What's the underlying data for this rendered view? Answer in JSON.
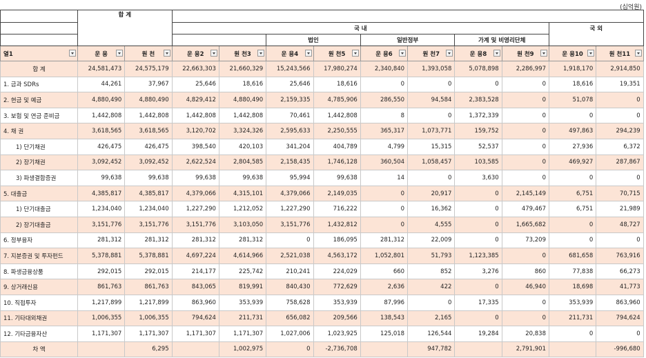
{
  "unit": "(십억원)",
  "header": {
    "total": "합 계",
    "domestic": "국 내",
    "foreign": "국 외",
    "groups": [
      "법인",
      "일반정부",
      "가계 및 비영리단체"
    ],
    "columns": [
      "열1",
      "운 용",
      "원 천",
      "운 용2",
      "원 천3",
      "운 용4",
      "원 천5",
      "운 용6",
      "원 천7",
      "운 용8",
      "원 천9",
      "운 용10",
      "원 천11"
    ]
  },
  "rows": [
    {
      "label": "합 계",
      "cells": [
        "24,581,473",
        "24,575,179",
        "22,663,303",
        "21,660,329",
        "15,243,566",
        "17,980,274",
        "2,340,840",
        "1,393,058",
        "5,078,898",
        "2,286,997",
        "1,918,170",
        "2,914,850"
      ]
    },
    {
      "label": "1. 금과 SDRs",
      "cells": [
        "44,261",
        "37,967",
        "25,646",
        "18,616",
        "25,646",
        "18,616",
        "0",
        "0",
        "0",
        "0",
        "18,616",
        "19,351"
      ]
    },
    {
      "label": "2. 현금 및 예금",
      "cells": [
        "4,880,490",
        "4,880,490",
        "4,829,412",
        "4,880,490",
        "2,159,335",
        "4,785,906",
        "286,550",
        "94,584",
        "2,383,528",
        "0",
        "51,078",
        "0"
      ]
    },
    {
      "label": "3. 보험 및 연금 준비금",
      "cells": [
        "1,442,808",
        "1,442,808",
        "1,442,808",
        "1,442,808",
        "70,461",
        "1,442,808",
        "8",
        "0",
        "1,372,339",
        "0",
        "0",
        "0"
      ]
    },
    {
      "label": "4. 채   권",
      "cells": [
        "3,618,565",
        "3,618,565",
        "3,120,702",
        "3,324,326",
        "2,595,633",
        "2,250,555",
        "365,317",
        "1,073,771",
        "159,752",
        "0",
        "497,863",
        "294,239"
      ]
    },
    {
      "label": "1) 단기채권",
      "cells": [
        "426,475",
        "426,475",
        "398,540",
        "420,103",
        "341,204",
        "404,789",
        "4,799",
        "15,315",
        "52,537",
        "0",
        "27,936",
        "6,372"
      ]
    },
    {
      "label": "2) 장기채권",
      "cells": [
        "3,092,452",
        "3,092,452",
        "2,622,524",
        "2,804,585",
        "2,158,435",
        "1,746,128",
        "360,504",
        "1,058,457",
        "103,585",
        "0",
        "469,927",
        "287,867"
      ]
    },
    {
      "label": "3) 파생결합증권",
      "cells": [
        "99,638",
        "99,638",
        "99,638",
        "99,638",
        "95,994",
        "99,638",
        "14",
        "0",
        "3,630",
        "0",
        "0",
        "0"
      ]
    },
    {
      "label": "5. 대출금",
      "cells": [
        "4,385,817",
        "4,385,817",
        "4,379,066",
        "4,315,101",
        "4,379,066",
        "2,149,035",
        "0",
        "20,917",
        "0",
        "2,145,149",
        "6,751",
        "70,715"
      ]
    },
    {
      "label": "1) 단기대출금",
      "cells": [
        "1,234,040",
        "1,234,040",
        "1,227,290",
        "1,212,052",
        "1,227,290",
        "716,222",
        "0",
        "16,362",
        "0",
        "479,467",
        "6,751",
        "21,989"
      ]
    },
    {
      "label": "2) 장기대출금",
      "cells": [
        "3,151,776",
        "3,151,776",
        "3,151,776",
        "3,103,050",
        "3,151,776",
        "1,432,812",
        "0",
        "4,555",
        "0",
        "1,665,682",
        "0",
        "48,727"
      ]
    },
    {
      "label": "6. 정부융자",
      "cells": [
        "281,312",
        "281,312",
        "281,312",
        "281,312",
        "0",
        "186,095",
        "281,312",
        "22,009",
        "0",
        "73,209",
        "0",
        "0"
      ]
    },
    {
      "label": "7. 지분증권 및 투자펀드",
      "cells": [
        "5,378,881",
        "5,378,881",
        "4,697,224",
        "4,614,966",
        "2,521,038",
        "4,563,172",
        "1,052,801",
        "51,793",
        "1,123,385",
        "0",
        "681,658",
        "763,916"
      ]
    },
    {
      "label": "8. 파생금융상품",
      "cells": [
        "292,015",
        "292,015",
        "214,177",
        "225,742",
        "210,241",
        "224,029",
        "660",
        "852",
        "3,276",
        "860",
        "77,838",
        "66,273"
      ]
    },
    {
      "label": "9. 상거래신용",
      "cells": [
        "861,763",
        "861,763",
        "843,065",
        "819,991",
        "840,430",
        "772,629",
        "2,636",
        "422",
        "0",
        "46,940",
        "18,698",
        "41,773"
      ]
    },
    {
      "label": "10. 직접투자",
      "cells": [
        "1,217,899",
        "1,217,899",
        "863,960",
        "353,939",
        "758,628",
        "353,939",
        "87,996",
        "0",
        "17,335",
        "0",
        "353,939",
        "863,960"
      ]
    },
    {
      "label": "11. 기타대외채권",
      "cells": [
        "1,006,355",
        "1,006,355",
        "794,624",
        "211,731",
        "656,082",
        "209,566",
        "138,543",
        "2,165",
        "0",
        "0",
        "211,731",
        "794,624"
      ]
    },
    {
      "label": "12. 기타금융자산",
      "cells": [
        "1,171,307",
        "1,171,307",
        "1,171,307",
        "1,171,307",
        "1,027,006",
        "1,023,925",
        "125,018",
        "126,544",
        "19,284",
        "20,838",
        "0",
        "0"
      ]
    },
    {
      "label": "차  액",
      "cells": [
        null,
        "6,295",
        null,
        "1,002,975",
        "0",
        "-2,736,708",
        null,
        "947,782",
        null,
        "2,791,901",
        null,
        "-996,680"
      ]
    }
  ]
}
